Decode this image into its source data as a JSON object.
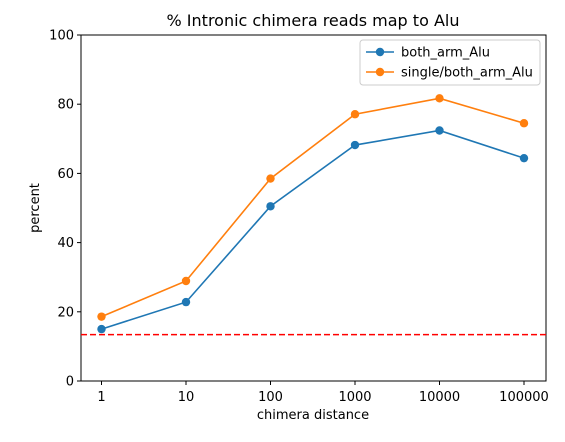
{
  "chart_data": {
    "type": "line",
    "title": "% Intronic chimera reads map to Alu",
    "xlabel": "chimera distance",
    "ylabel": "percent",
    "x_scale": "log",
    "categories": [
      "1",
      "10",
      "100",
      "1000",
      "10000",
      "100000"
    ],
    "x": [
      1,
      10,
      100,
      1000,
      10000,
      100000
    ],
    "ylim": [
      0,
      100
    ],
    "yticks": [
      0,
      20,
      40,
      60,
      80,
      100
    ],
    "grid": false,
    "legend_position": "top-right",
    "series": [
      {
        "name": "both_arm_Alu",
        "color": "#1f77b4",
        "marker": "circle",
        "values": [
          15.0,
          22.8,
          50.5,
          68.2,
          72.4,
          64.4
        ]
      },
      {
        "name": "single/both_arm_Alu",
        "color": "#ff7f0e",
        "marker": "circle",
        "values": [
          18.6,
          28.9,
          58.5,
          77.1,
          81.7,
          74.5
        ]
      }
    ],
    "reference_line": {
      "y": 13.4,
      "color": "#ff0000",
      "style": "dashed"
    }
  }
}
